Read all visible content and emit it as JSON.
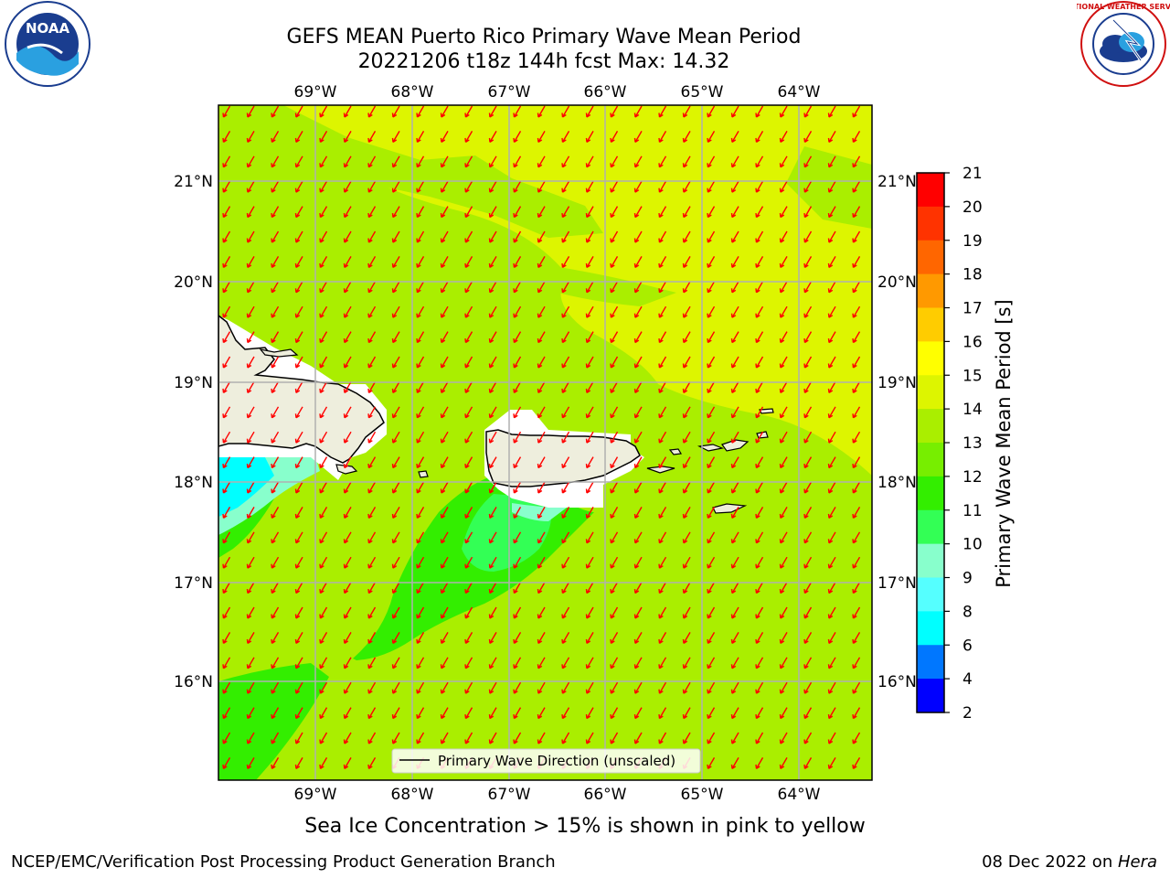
{
  "title": {
    "line1": "GEFS MEAN Puerto Rico Primary Wave Mean Period",
    "line2": "20221206 t18z 144h fcst   Max: 14.32"
  },
  "map": {
    "lon_labels": [
      "69°W",
      "68°W",
      "67°W",
      "66°W",
      "65°W",
      "64°W"
    ],
    "lat_labels": [
      "21°N",
      "20°N",
      "19°N",
      "18°N",
      "17°N",
      "16°N"
    ],
    "legend_label": "Primary Wave Direction (unscaled)"
  },
  "colorbar": {
    "label": "Primary Wave Mean Period [s]",
    "ticks": [
      "21",
      "20",
      "19",
      "18",
      "17",
      "16",
      "15",
      "14",
      "13",
      "12",
      "11",
      "10",
      "9",
      "8",
      "6",
      "4",
      "2"
    ],
    "colors": [
      "#ff0000",
      "#ff3300",
      "#ff6600",
      "#ff9900",
      "#ffcc00",
      "#ffff00",
      "#ddf500",
      "#aaee00",
      "#77ee00",
      "#33ee00",
      "#33ff55",
      "#88ffcc",
      "#55ffff",
      "#00ffff",
      "#0077ff",
      "#0000ff"
    ]
  },
  "caption": "Sea Ice Concentration > 15% is shown in pink to yellow",
  "footer": {
    "left": "NCEP/EMC/Verification Post Processing Product Generation Branch",
    "date": "08 Dec 2022 on ",
    "machine": "Hera"
  },
  "logos": {
    "noaa_text": "NOAA",
    "nws_text": "NATIONAL WEATHER SERVICE"
  }
}
